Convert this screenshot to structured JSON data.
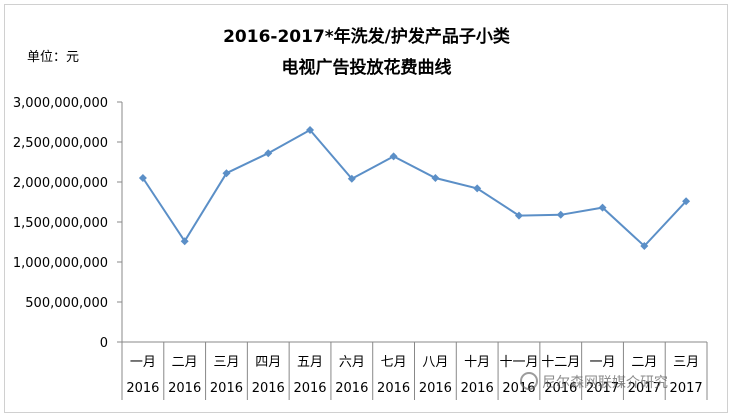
{
  "chart_data": {
    "type": "line",
    "title": "2016-2017*年洗发/护发产品子小类",
    "subtitle": "电视广告投放花费曲线",
    "unit_label": "单位：元",
    "categories": [
      {
        "month": "一月",
        "year": "2016"
      },
      {
        "month": "二月",
        "year": "2016"
      },
      {
        "month": "三月",
        "year": "2016"
      },
      {
        "month": "四月",
        "year": "2016"
      },
      {
        "month": "五月",
        "year": "2016"
      },
      {
        "month": "六月",
        "year": "2016"
      },
      {
        "month": "七月",
        "year": "2016"
      },
      {
        "month": "八月",
        "year": "2016"
      },
      {
        "month": "十月",
        "year": "2016"
      },
      {
        "month": "十一月",
        "year": "2016"
      },
      {
        "month": "十二月",
        "year": "2016"
      },
      {
        "month": "一月",
        "year": "2017"
      },
      {
        "month": "二月",
        "year": "2017"
      },
      {
        "month": "三月",
        "year": "2017"
      }
    ],
    "values": [
      2050000000,
      1260000000,
      2110000000,
      2360000000,
      2650000000,
      2040000000,
      2320000000,
      2050000000,
      1920000000,
      1580000000,
      1590000000,
      1680000000,
      1200000000,
      1760000000
    ],
    "yticks": [
      "3,000,000,000",
      "2,500,000,000",
      "2,000,000,000",
      "1,500,000,000",
      "1,000,000,000",
      "500,000,000",
      "0"
    ],
    "ylim": [
      0,
      3000000000
    ],
    "line_color": "#5b8fc7",
    "grid": false
  },
  "watermark": "尼尔森网联媒介研究"
}
